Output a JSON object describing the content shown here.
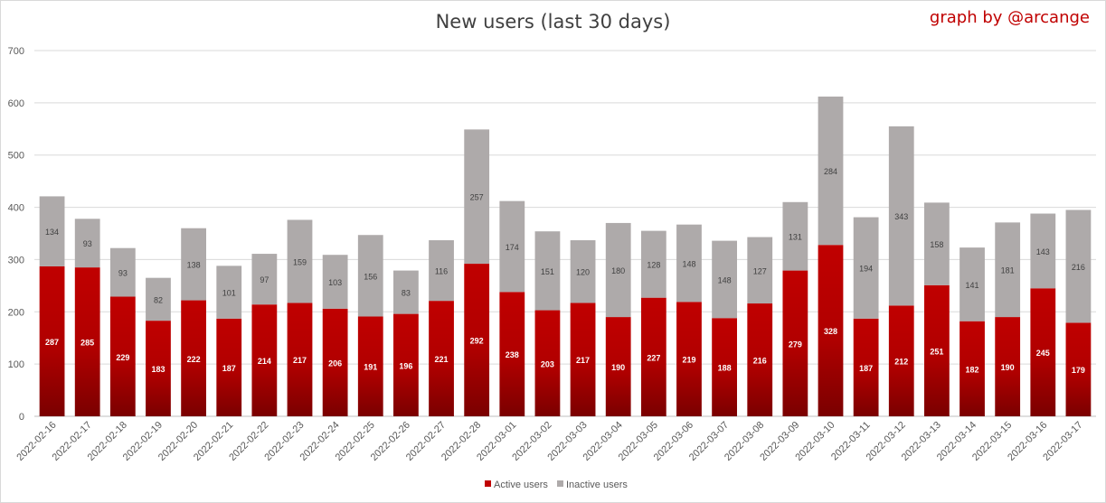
{
  "chart_data": {
    "type": "bar",
    "stacked": true,
    "title": "New users (last 30 days)",
    "credit": "graph by @arcange",
    "xlabel": "",
    "ylabel": "",
    "ylim": [
      0,
      700
    ],
    "yticks": [
      0,
      100,
      200,
      300,
      400,
      500,
      600,
      700
    ],
    "grid": true,
    "legend_position": "bottom",
    "categories": [
      "2022-02-16",
      "2022-02-17",
      "2022-02-18",
      "2022-02-19",
      "2022-02-20",
      "2022-02-21",
      "2022-02-22",
      "2022-02-23",
      "2022-02-24",
      "2022-02-25",
      "2022-02-26",
      "2022-02-27",
      "2022-02-28",
      "2022-03-01",
      "2022-03-02",
      "2022-03-03",
      "2022-03-04",
      "2022-03-05",
      "2022-03-06",
      "2022-03-07",
      "2022-03-08",
      "2022-03-09",
      "2022-03-10",
      "2022-03-11",
      "2022-03-12",
      "2022-03-13",
      "2022-03-14",
      "2022-03-15",
      "2022-03-16",
      "2022-03-17"
    ],
    "series": [
      {
        "name": "Active users",
        "color": "#c00000",
        "values": [
          287,
          285,
          229,
          183,
          222,
          187,
          214,
          217,
          206,
          191,
          196,
          221,
          292,
          238,
          203,
          217,
          190,
          227,
          219,
          188,
          216,
          279,
          328,
          187,
          212,
          251,
          182,
          190,
          245,
          179
        ]
      },
      {
        "name": "Inactive users",
        "color": "#aeaaaa",
        "values": [
          134,
          93,
          93,
          82,
          138,
          101,
          97,
          159,
          103,
          156,
          83,
          116,
          257,
          174,
          151,
          120,
          180,
          128,
          148,
          148,
          127,
          131,
          284,
          194,
          343,
          158,
          141,
          181,
          143,
          216
        ]
      }
    ]
  }
}
